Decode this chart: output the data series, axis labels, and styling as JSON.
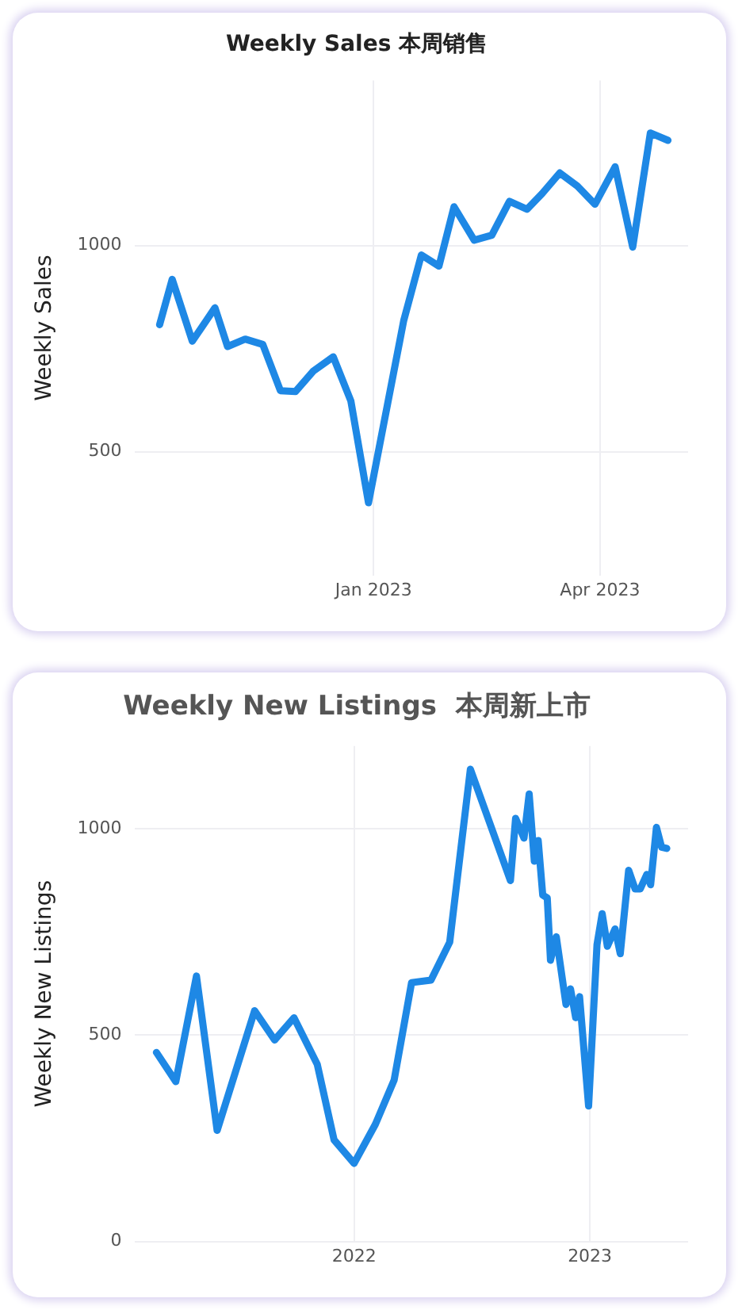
{
  "chart_data": [
    {
      "type": "line",
      "title": "Weekly Sales 本周销售",
      "ylabel": "Weekly Sales",
      "x": [
        "2022-10-08",
        "2022-10-13",
        "2022-10-21",
        "2022-10-30",
        "2022-11-04",
        "2022-11-11",
        "2022-11-18",
        "2022-11-25",
        "2022-12-01",
        "2022-12-08",
        "2022-12-16",
        "2022-12-23",
        "2022-12-30",
        "2023-01-13",
        "2023-01-20",
        "2023-01-27",
        "2023-02-02",
        "2023-02-10",
        "2023-02-17",
        "2023-02-24",
        "2023-03-03",
        "2023-03-09",
        "2023-03-16",
        "2023-03-23",
        "2023-03-30",
        "2023-04-07",
        "2023-04-14",
        "2023-04-21",
        "2023-04-28"
      ],
      "series": [
        {
          "color": "#1e88e5",
          "values": [
            808,
            918,
            768,
            849,
            755,
            773,
            760,
            648,
            646,
            695,
            730,
            623,
            376,
            818,
            977,
            950,
            1094,
            1013,
            1025,
            1107,
            1088,
            1126,
            1176,
            1144,
            1100,
            1191,
            996,
            1273,
            1255
          ]
        }
      ],
      "xlim": [
        "2022-09-28",
        "2023-05-06"
      ],
      "xticks": [
        {
          "value": "2023-01",
          "label": "Jan 2023"
        },
        {
          "value": "2023-04",
          "label": "Apr 2023"
        }
      ],
      "ylim": [
        200,
        1400
      ],
      "yticks": [
        500,
        1000
      ],
      "grid": true,
      "marker": "none",
      "line_style": "solid"
    },
    {
      "type": "line",
      "title": "Weekly New Listings  本周新上市",
      "ylabel": "Weekly New Listings",
      "x": [
        "2021-03-01",
        "2021-03-31",
        "2021-05-02",
        "2021-06-03",
        "2021-07-31",
        "2021-08-31",
        "2021-09-30",
        "2021-11-05",
        "2021-12-01",
        "2022-01-01",
        "2022-02-03",
        "2022-03-04",
        "2022-03-31",
        "2022-04-30",
        "2022-05-29",
        "2022-06-30",
        "2022-08-31",
        "2022-09-08",
        "2022-09-21",
        "2022-09-29",
        "2022-10-07",
        "2022-10-13",
        "2022-10-20",
        "2022-10-27",
        "2022-11-01",
        "2022-11-10",
        "2022-11-25",
        "2022-12-02",
        "2022-12-10",
        "2022-12-16",
        "2022-12-30",
        "2023-01-12",
        "2023-01-20",
        "2023-01-28",
        "2023-02-09",
        "2023-02-17",
        "2023-03-02",
        "2023-03-12",
        "2023-03-20",
        "2023-03-30",
        "2023-04-05",
        "2023-04-14",
        "2023-04-22",
        "2023-04-30"
      ],
      "series": [
        {
          "color": "#1e88e5",
          "values": [
            458,
            387,
            643,
            269,
            559,
            488,
            542,
            429,
            246,
            189,
            284,
            391,
            627,
            633,
            725,
            1144,
            874,
            1025,
            977,
            1084,
            921,
            971,
            839,
            832,
            681,
            738,
            574,
            612,
            542,
            593,
            328,
            719,
            794,
            715,
            757,
            697,
            899,
            854,
            854,
            889,
            864,
            1003,
            955,
            952
          ]
        }
      ],
      "xlim": [
        "2021-01-26",
        "2023-06-02"
      ],
      "xticks": [
        "2022",
        "2023"
      ],
      "ylim": [
        0,
        1200
      ],
      "yticks": [
        0,
        500,
        1000
      ],
      "grid": true,
      "marker": "none",
      "line_style": "solid"
    }
  ]
}
